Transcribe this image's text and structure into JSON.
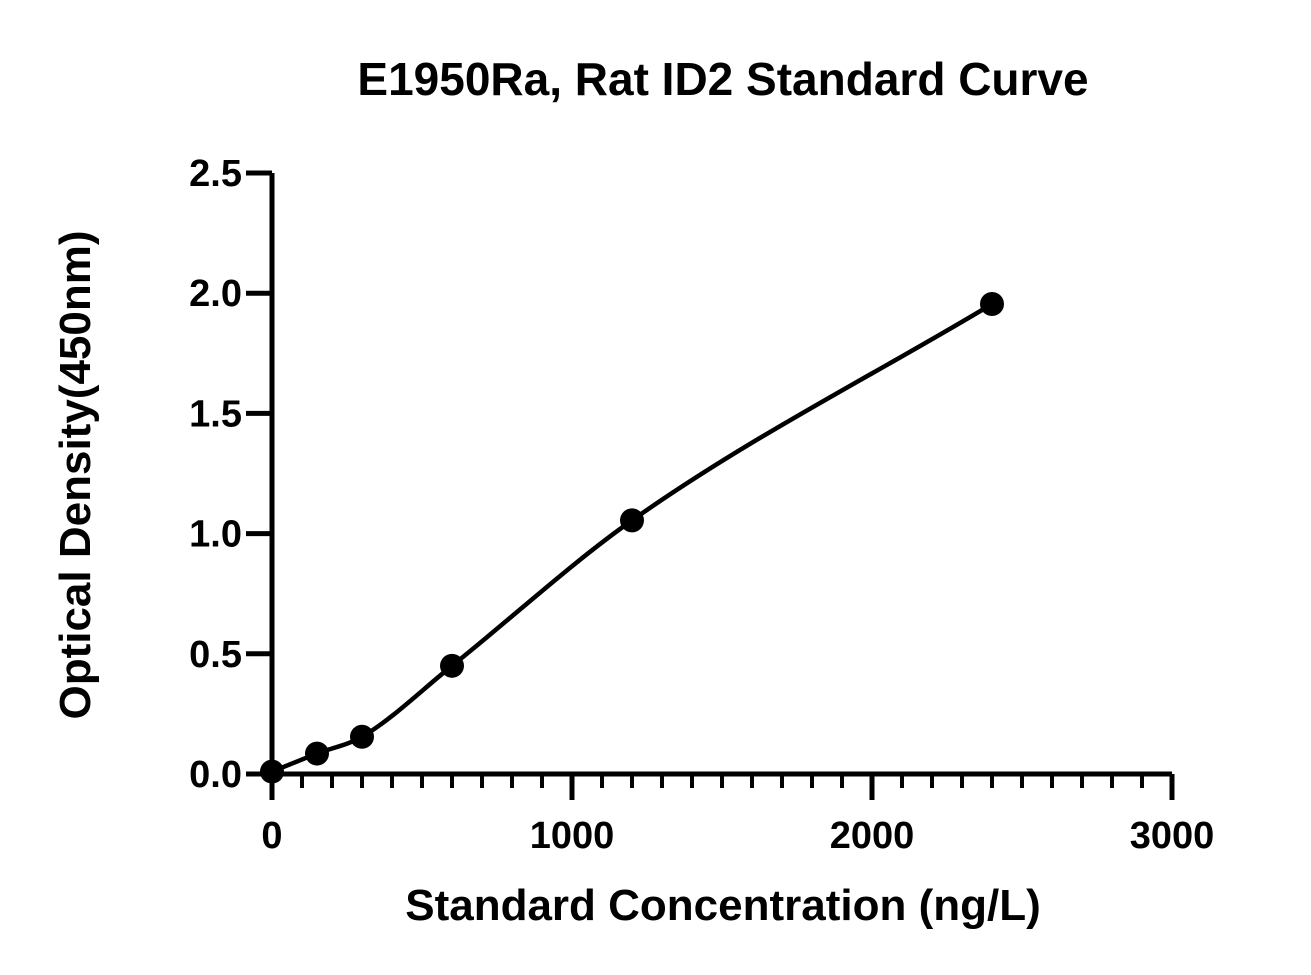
{
  "chart_data": {
    "type": "scatter",
    "title": "E1950Ra, Rat ID2 Standard Curve",
    "xlabel": "Standard Concentration (ng/L)",
    "ylabel": "Optical Density(450nm)",
    "xlim": [
      0,
      3000
    ],
    "ylim": [
      0,
      2.5
    ],
    "x_ticks": [
      "0",
      "1000",
      "2000",
      "3000"
    ],
    "y_ticks": [
      "0.0",
      "0.5",
      "1.0",
      "1.5",
      "2.0",
      "2.5"
    ],
    "grid": false,
    "legend": "none",
    "series": [
      {
        "points": [
          {
            "x": 0,
            "y": 0.01
          },
          {
            "x": 150,
            "y": 0.085
          },
          {
            "x": 300,
            "y": 0.155
          },
          {
            "x": 600,
            "y": 0.45
          },
          {
            "x": 1200,
            "y": 1.055
          },
          {
            "x": 2400,
            "y": 1.955
          }
        ],
        "fit_curve": true,
        "color": "#000000"
      }
    ]
  }
}
